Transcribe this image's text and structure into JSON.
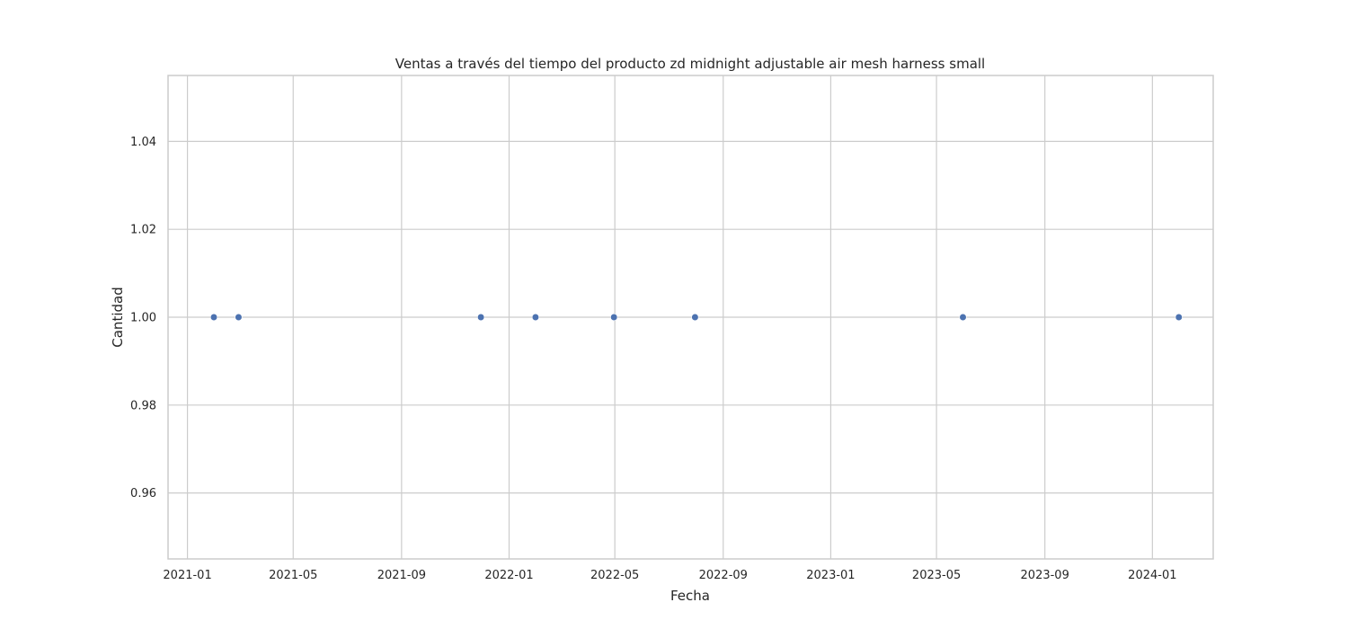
{
  "chart_data": {
    "type": "scatter",
    "title": "Ventas a través del tiempo del producto zd midnight adjustable air mesh harness small",
    "xlabel": "Fecha",
    "ylabel": "Cantidad",
    "x_axis_type": "date",
    "xlim": [
      "2020-12-10",
      "2024-03-10"
    ],
    "ylim": [
      0.945,
      1.055
    ],
    "x_ticks": [
      "2021-01",
      "2021-05",
      "2021-09",
      "2022-01",
      "2022-05",
      "2022-09",
      "2023-01",
      "2023-05",
      "2023-09",
      "2024-01"
    ],
    "y_ticks": [
      0.96,
      0.98,
      1.0,
      1.02,
      1.04
    ],
    "y_tick_labels": [
      "0.96",
      "0.98",
      "1.00",
      "1.02",
      "1.04"
    ],
    "grid": true,
    "series": [
      {
        "x": [
          "2021-01-31",
          "2021-02-28",
          "2021-11-30",
          "2022-01-31",
          "2022-04-30",
          "2022-07-31",
          "2023-05-31",
          "2024-01-31"
        ],
        "y": [
          1,
          1,
          1,
          1,
          1,
          1,
          1,
          1
        ],
        "color": "#4c72b0"
      }
    ]
  }
}
